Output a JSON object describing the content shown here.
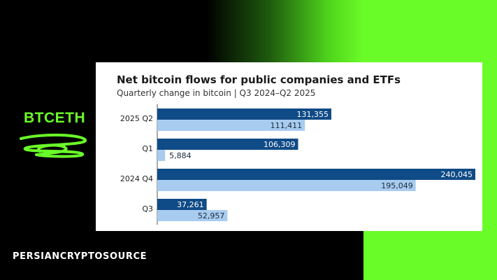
{
  "brand": {
    "logo_text": "BTCETH",
    "footer_text": "PERSIANCRYPTOSOURCE"
  },
  "colors": {
    "accent_green": "#6afc28",
    "series_dark": "#0f4b86",
    "series_light": "#a8ccf0"
  },
  "chart_data": {
    "type": "bar",
    "orientation": "horizontal",
    "title": "Net bitcoin flows for public companies and ETFs",
    "subtitle": "Quarterly change in bitcoin | Q3 2024–Q2 2025",
    "categories": [
      "2025 Q2",
      "Q1",
      "2024 Q4",
      "Q3"
    ],
    "series": [
      {
        "values": [
          131355,
          106309,
          240045,
          37261
        ],
        "labels": [
          "131,355",
          "106,309",
          "240,045",
          "37,261"
        ],
        "color": "#0f4b86"
      },
      {
        "values": [
          111411,
          5884,
          195049,
          52957
        ],
        "labels": [
          "111,411",
          "5,884",
          "195,049",
          "52,957"
        ],
        "color": "#a8ccf0"
      }
    ],
    "xlim": [
      0,
      240045
    ],
    "grid": false,
    "legend": "none"
  }
}
